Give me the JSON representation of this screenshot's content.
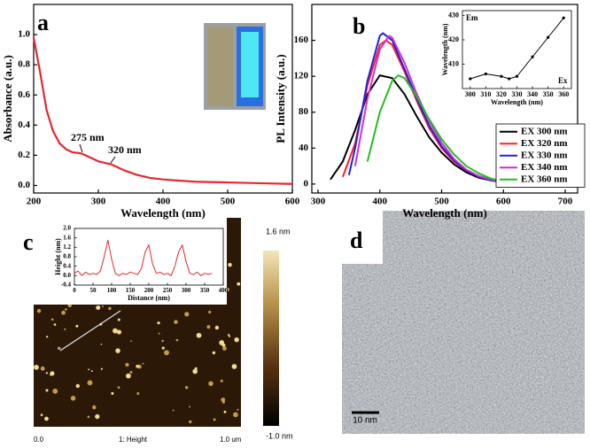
{
  "chart_data": [
    {
      "type": "line",
      "panel_label": "a",
      "xlabel": "Wavelength (nm)",
      "ylabel": "Absorbance (a.u.)",
      "xlim": [
        200,
        600
      ],
      "ylim": [
        -0.05,
        1.2
      ],
      "xticks": [
        200,
        300,
        400,
        500,
        600
      ],
      "yticks": [
        {
          "value": 0,
          "label": "0.0"
        },
        0.2,
        0.4,
        0.6,
        0.8,
        {
          "value": 1,
          "label": "1.0"
        }
      ],
      "x": [
        200,
        210,
        220,
        230,
        240,
        250,
        260,
        270,
        275,
        280,
        290,
        300,
        310,
        320,
        330,
        340,
        360,
        380,
        400,
        450,
        500,
        550,
        600
      ],
      "series": [
        {
          "color": "#e8262b",
          "values": [
            0.98,
            0.75,
            0.5,
            0.36,
            0.28,
            0.24,
            0.22,
            0.215,
            0.21,
            0.2,
            0.18,
            0.16,
            0.15,
            0.14,
            0.12,
            0.1,
            0.07,
            0.05,
            0.04,
            0.025,
            0.02,
            0.015,
            0.01
          ]
        }
      ],
      "annotations": [
        "275 nm",
        "320 nm"
      ]
    },
    {
      "type": "line",
      "panel_label": "b",
      "xlabel": "Wavelength (nm)",
      "ylabel": "PL Intensity (a.u.)",
      "xlim": [
        290,
        720
      ],
      "ylim": [
        -10,
        200
      ],
      "xticks": [
        300,
        400,
        500,
        600,
        700
      ],
      "yticks": [
        0,
        40,
        80,
        120,
        160
      ],
      "legend": "lower right",
      "series": [
        {
          "name": "EX 300 nm",
          "color": "#000000",
          "x": [
            320,
            340,
            360,
            380,
            400,
            420,
            440,
            460,
            480,
            500,
            520,
            540,
            560,
            580,
            600,
            620,
            640
          ],
          "values": [
            5,
            25,
            60,
            100,
            121,
            118,
            100,
            75,
            52,
            35,
            22,
            13,
            7,
            4,
            2,
            1,
            0
          ]
        },
        {
          "name": "EX 320 nm",
          "color": "#ff2020",
          "x": [
            340,
            360,
            380,
            400,
            410,
            420,
            440,
            460,
            480,
            500,
            520,
            540,
            560,
            580,
            600,
            620,
            640
          ],
          "values": [
            8,
            45,
            110,
            155,
            160,
            155,
            125,
            92,
            62,
            40,
            25,
            15,
            8,
            4,
            2,
            1,
            0
          ]
        },
        {
          "name": "EX 330 nm",
          "color": "#2020e0",
          "x": [
            350,
            360,
            380,
            400,
            405,
            420,
            440,
            460,
            480,
            500,
            520,
            540,
            560,
            580,
            600,
            620,
            640
          ],
          "values": [
            10,
            40,
            115,
            165,
            168,
            160,
            128,
            95,
            65,
            42,
            26,
            15,
            8,
            4,
            2,
            1,
            0
          ]
        },
        {
          "name": "EX 340 nm",
          "color": "#d030d0",
          "x": [
            360,
            380,
            400,
            415,
            420,
            440,
            460,
            480,
            500,
            520,
            540,
            560,
            580,
            600,
            620,
            640
          ],
          "values": [
            20,
            95,
            150,
            165,
            163,
            135,
            100,
            70,
            46,
            28,
            16,
            9,
            5,
            2,
            1,
            0
          ]
        },
        {
          "name": "EX 360 nm",
          "color": "#20c020",
          "x": [
            380,
            400,
            420,
            430,
            440,
            460,
            480,
            500,
            520,
            540,
            560,
            580,
            600,
            620,
            650
          ],
          "values": [
            25,
            80,
            115,
            121,
            118,
            97,
            72,
            50,
            33,
            20,
            12,
            6,
            3,
            1,
            0
          ]
        }
      ]
    },
    {
      "type": "line",
      "xlabel": "Wavelength (nm)",
      "ylabel": "Wavelength (nm)",
      "xlim": [
        295,
        365
      ],
      "ylim": [
        400,
        432
      ],
      "xticks": [
        300,
        310,
        320,
        330,
        340,
        350,
        360
      ],
      "yticks": [
        410,
        420,
        430
      ],
      "markers": true,
      "x": [
        300,
        310,
        320,
        325,
        330,
        340,
        350,
        360
      ],
      "series": [
        {
          "color": "#000000",
          "values": [
            404,
            406,
            405,
            404,
            405,
            413,
            421,
            429
          ]
        }
      ],
      "annotations": [
        "Em",
        "Ex"
      ]
    },
    {
      "type": "line",
      "xlabel": "Distance (nm)",
      "ylabel": "Height (nm)",
      "xlim": [
        0,
        400
      ],
      "ylim": [
        -0.4,
        2.0
      ],
      "xticks": [
        0,
        50,
        100,
        150,
        200,
        250,
        300,
        350,
        400
      ],
      "yticks": [
        -0.4,
        {
          "value": 0,
          "label": "0.0"
        },
        0.4,
        0.8,
        1.2,
        1.6,
        {
          "value": 2,
          "label": "2.0"
        }
      ],
      "x": [
        0,
        10,
        20,
        30,
        40,
        50,
        60,
        70,
        80,
        90,
        100,
        110,
        120,
        130,
        140,
        150,
        160,
        170,
        180,
        190,
        200,
        210,
        220,
        230,
        240,
        250,
        260,
        270,
        280,
        290,
        300,
        310,
        320,
        330,
        340,
        350,
        360,
        370
      ],
      "series": [
        {
          "color": "#e8262b",
          "values": [
            0.1,
            0.2,
            0.0,
            0.15,
            0.05,
            0.1,
            0.05,
            0.2,
            0.8,
            1.5,
            0.7,
            0.1,
            0.0,
            0.1,
            0.05,
            0.15,
            0.1,
            0.05,
            0.3,
            1.0,
            1.3,
            0.5,
            0.1,
            0.15,
            0.05,
            0.1,
            0.0,
            0.4,
            1.0,
            1.3,
            0.6,
            0.1,
            0.05,
            0.15,
            0.0,
            0.1,
            0.05,
            0.1
          ]
        }
      ]
    }
  ],
  "images": {
    "afm": {
      "panel_label": "c",
      "colorbar_max": "1.6 nm",
      "colorbar_min": "-1.0 nm",
      "axis_start": "0.0",
      "axis_title": "1: Height",
      "axis_end": "1.0 um"
    },
    "tem": {
      "panel_label": "d",
      "scale_bar": "10 nm"
    }
  }
}
